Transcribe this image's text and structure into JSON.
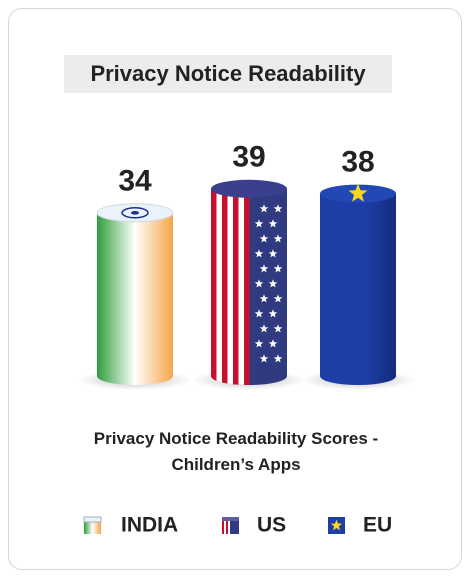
{
  "chart_data": {
    "type": "bar",
    "title": "Privacy Notice Readability",
    "categories": [
      "INDIA",
      "US",
      "EU"
    ],
    "values": [
      34,
      39,
      38
    ],
    "colors": [
      "#2f9e3c",
      "#2f3a80",
      "#1c3ea6"
    ],
    "caption": "Privacy Notice Readability Scores - Children’s Apps"
  }
}
